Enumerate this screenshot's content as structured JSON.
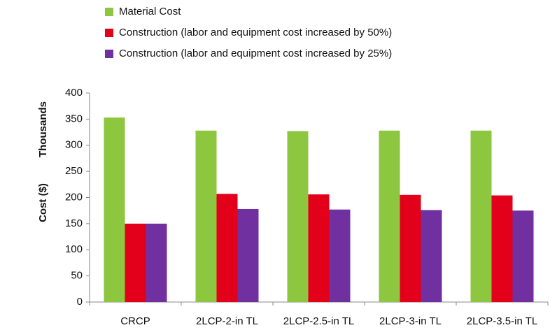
{
  "chart_data": {
    "type": "bar",
    "ylabel": "Cost ($)",
    "yunit_label": "Thousands",
    "categories": [
      "CRCP",
      "2LCP-2-in TL",
      "2LCP-2.5-in TL",
      "2LCP-3-in TL",
      "2LCP-3.5-in TL"
    ],
    "series": [
      {
        "name": "Material Cost",
        "color": "#8dc63f",
        "values": [
          353,
          328,
          327,
          328,
          328
        ]
      },
      {
        "name": "Construction (labor and equipment cost increased by 50%)",
        "color": "#e2001a",
        "values": [
          150,
          207,
          206,
          205,
          204
        ]
      },
      {
        "name": "Construction (labor and equipment cost increased by 25%)",
        "color": "#7030a0",
        "values": [
          150,
          178,
          177,
          176,
          175
        ]
      }
    ],
    "ylim": [
      0,
      400
    ],
    "yticks": [
      0,
      50,
      100,
      150,
      200,
      250,
      300,
      350,
      400
    ],
    "grid": false,
    "legend": "top"
  }
}
